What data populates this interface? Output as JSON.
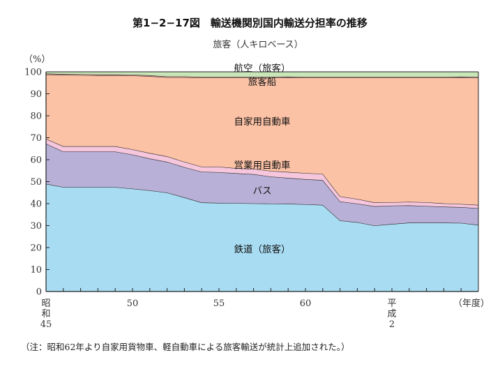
{
  "title": "第1−2−17図　輸送機関別国内輸送分担率の推移",
  "subtitle": "旅客（人キロベース）",
  "unit": "（%）",
  "footnote": "（注：昭和62年より自家用貨物車、軽自動車による旅客輸送が統計上追加された。）",
  "chart_data": {
    "type": "area",
    "stacked": true,
    "xlabel": "（年度）",
    "ylabel": "（%）",
    "ylim": [
      0,
      100
    ],
    "yticks": [
      0,
      10,
      20,
      30,
      40,
      50,
      60,
      70,
      80,
      90,
      100
    ],
    "x": [
      45,
      46,
      47,
      48,
      49,
      50,
      51,
      52,
      53,
      54,
      55,
      56,
      57,
      58,
      59,
      60,
      61,
      62,
      63,
      64,
      65,
      66,
      67,
      68,
      69,
      70
    ],
    "xtick_labels": [
      {
        "x": 45,
        "lines": [
          "昭",
          "和",
          "45"
        ]
      },
      {
        "x": 50,
        "lines": [
          "50"
        ]
      },
      {
        "x": 55,
        "lines": [
          "55"
        ]
      },
      {
        "x": 60,
        "lines": [
          "60"
        ]
      },
      {
        "x": 65,
        "lines": [
          "平",
          "成",
          "2"
        ]
      }
    ],
    "grid": false,
    "series": [
      {
        "name": "鉄道（旅客）",
        "color": "#a8dcf2",
        "values": [
          49,
          47.5,
          47.5,
          47.5,
          47.5,
          46.8,
          46,
          45,
          42.8,
          40.5,
          40.3,
          40.2,
          40.1,
          40,
          39.9,
          39.7,
          39.4,
          32.3,
          31.5,
          30,
          30.7,
          31.3,
          31.3,
          31.3,
          31.2,
          30.3
        ]
      },
      {
        "name": "バス",
        "color": "#b8b0d6",
        "values": [
          18.3,
          16.2,
          16.2,
          16.2,
          16.2,
          15.5,
          14.5,
          14,
          13.8,
          14,
          14,
          13.6,
          13.3,
          12.3,
          11.8,
          11.4,
          11.3,
          8.7,
          8.5,
          8.8,
          8.4,
          7.9,
          7.6,
          7.3,
          7.2,
          7.6
        ]
      },
      {
        "name": "営業用自動車",
        "color": "#f5c6dc",
        "values": [
          2.2,
          2.4,
          2.4,
          2.4,
          2.4,
          2.4,
          2.5,
          2.5,
          2.4,
          2.3,
          2.5,
          2.3,
          2.4,
          2.6,
          2.7,
          2.8,
          2.8,
          2.3,
          2.1,
          1.7,
          1.5,
          1.6,
          1.7,
          1.5,
          1.4,
          1.5
        ]
      },
      {
        "name": "自家用自動車",
        "color": "#fcc2a6",
        "values": [
          29.3,
          32.5,
          32.4,
          32.3,
          32.3,
          33.6,
          35,
          36,
          38.5,
          40.5,
          40.5,
          41.2,
          41.5,
          42.4,
          43,
          43.4,
          43.8,
          54,
          55.2,
          56.8,
          56.7,
          56.5,
          56.7,
          57.2,
          57.6,
          57.9
        ]
      },
      {
        "name": "旅客船",
        "color": "#f0a8a0",
        "values": [
          0.4,
          0.4,
          0.4,
          0.4,
          0.4,
          0.4,
          0.4,
          0.4,
          0.4,
          0.4,
          0.4,
          0.4,
          0.4,
          0.4,
          0.4,
          0.4,
          0.4,
          0.4,
          0.4,
          0.4,
          0.4,
          0.4,
          0.4,
          0.4,
          0.4,
          0.4
        ]
      },
      {
        "name": "航空（旅客）",
        "color": "#c8e6b8",
        "values": [
          0.8,
          1.0,
          1.1,
          1.2,
          1.2,
          1.3,
          1.6,
          2.1,
          2.1,
          2.3,
          2.3,
          2.3,
          2.3,
          2.3,
          2.2,
          2.3,
          2.3,
          2.3,
          2.3,
          2.3,
          2.3,
          2.3,
          2.3,
          2.3,
          2.2,
          2.3
        ]
      }
    ],
    "series_labels": [
      {
        "name": "航空（旅客）",
        "x": 57.5,
        "y": 101.7
      },
      {
        "name": "旅客船",
        "x": 57.5,
        "y": 95.5
      },
      {
        "name": "自家用自動車",
        "x": 57.5,
        "y": 77.4
      },
      {
        "name": "営業用自動車",
        "x": 57.5,
        "y": 57.6
      },
      {
        "name": "バス",
        "x": 57.5,
        "y": 46
      },
      {
        "name": "鉄道（旅客）",
        "x": 57.5,
        "y": 19.3
      }
    ]
  }
}
